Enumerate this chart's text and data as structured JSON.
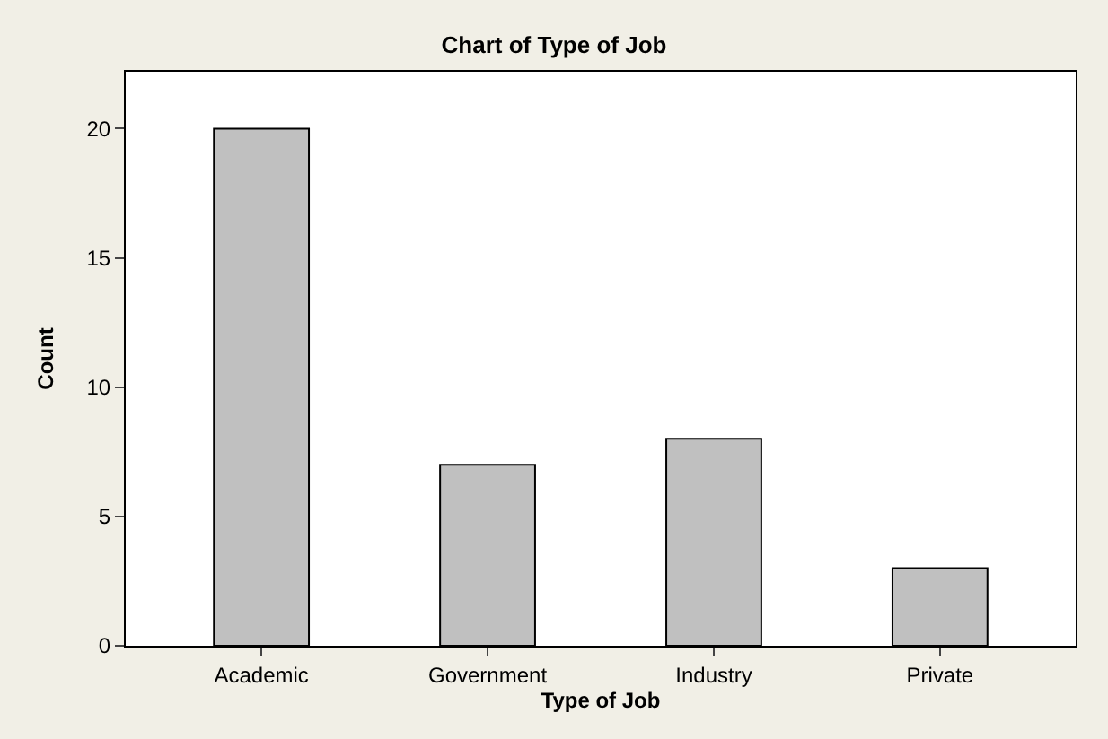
{
  "chart_data": {
    "type": "bar",
    "title": "Chart of Type of Job",
    "xlabel": "Type of Job",
    "ylabel": "Count",
    "categories": [
      "Academic",
      "Government",
      "Industry",
      "Private"
    ],
    "series": [
      {
        "color": "#c0c0c0",
        "values": [
          20,
          7,
          8,
          3
        ]
      }
    ],
    "ylim": [
      0,
      22.2
    ],
    "yticks": [
      0,
      5,
      10,
      15,
      20
    ]
  }
}
